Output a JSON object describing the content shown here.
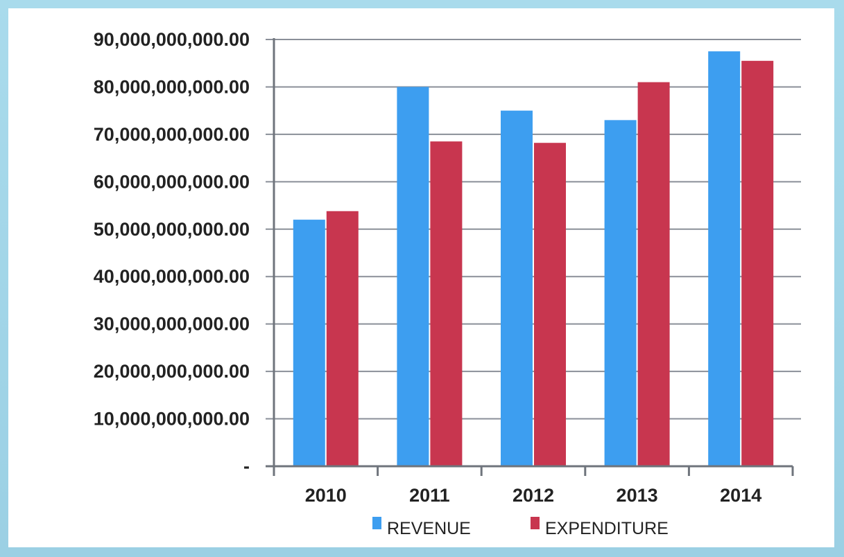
{
  "chart_data": {
    "type": "bar",
    "categories": [
      "2010",
      "2011",
      "2012",
      "2013",
      "2014"
    ],
    "series": [
      {
        "name": "REVENUE",
        "color": "#3d9ef0",
        "values": [
          52000000000,
          80000000000,
          75000000000,
          73000000000,
          87500000000
        ]
      },
      {
        "name": "EXPENDITURE",
        "color": "#c8364f",
        "values": [
          53800000000,
          68500000000,
          68200000000,
          81000000000,
          85500000000
        ]
      }
    ],
    "ylim": [
      0,
      90000000000
    ],
    "y_ticks": [
      {
        "value": 0,
        "label": "-"
      },
      {
        "value": 10000000000,
        "label": "10,000,000,000.00"
      },
      {
        "value": 20000000000,
        "label": "20,000,000,000.00"
      },
      {
        "value": 30000000000,
        "label": "30,000,000,000.00"
      },
      {
        "value": 40000000000,
        "label": "40,000,000,000.00"
      },
      {
        "value": 50000000000,
        "label": "50,000,000,000.00"
      },
      {
        "value": 60000000000,
        "label": "60,000,000,000.00"
      },
      {
        "value": 70000000000,
        "label": "70,000,000,000.00"
      },
      {
        "value": 80000000000,
        "label": "80,000,000,000.00"
      },
      {
        "value": 90000000000,
        "label": "90,000,000,000.00"
      }
    ],
    "grid": true,
    "legend_position": "bottom",
    "title": "",
    "xlabel": "",
    "ylabel": ""
  }
}
